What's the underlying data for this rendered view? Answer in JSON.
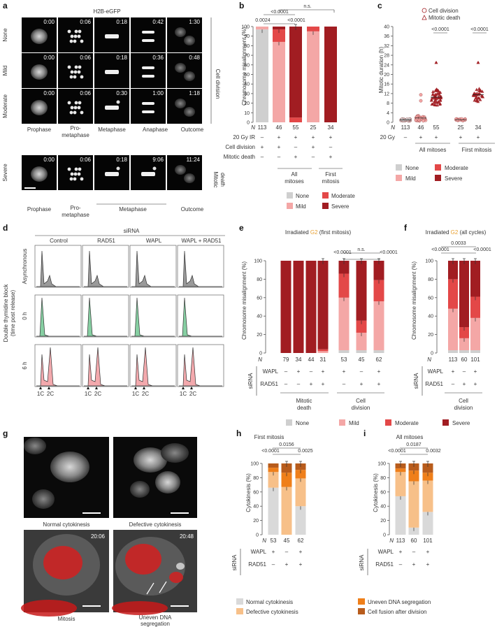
{
  "colors": {
    "none": "#cfcfcf",
    "mild": "#f4a7a6",
    "moderate": "#e34848",
    "severe": "#a11d22",
    "normal_cyto": "#d9d9d9",
    "defective_cyto": "#f7c089",
    "uneven_dna": "#ef7f1a",
    "fusion": "#b85c1c",
    "green": "#86cfa2",
    "pink": "#f3a9ad",
    "gray": "#9a9a9a",
    "g2": "#e8a030"
  },
  "panel_a": {
    "letter": "a",
    "title": "H2B-eGFP",
    "rows": [
      {
        "label": "None",
        "times": [
          "0:00",
          "0:06",
          "0:18",
          "0:42",
          "1:30"
        ]
      },
      {
        "label": "Mild",
        "times": [
          "0:00",
          "0:06",
          "0:18",
          "0:36",
          "0:48"
        ]
      },
      {
        "label": "Moderate",
        "times": [
          "0:00",
          "0:06",
          "0:30",
          "1:00",
          "1:18"
        ]
      },
      {
        "label": "Severe",
        "times": [
          "0:00",
          "0:06",
          "0:18",
          "9:06",
          "11:24"
        ]
      }
    ],
    "right_label_top": "Cell division",
    "right_label_bottom_1": "Mitotic",
    "right_label_bottom_2": "death",
    "cols_top": [
      "Prophase",
      "Pro-",
      "metaphase",
      "Metaphase",
      "Anaphase",
      "Outcome"
    ],
    "cols_bottom": [
      "Prophase",
      "Pro-",
      "metaphase",
      "Metaphase",
      "Outcome"
    ]
  },
  "panel_b": {
    "letter": "b",
    "ylabel": "Chromosome misalignment (%)",
    "yticks": [
      "0",
      "10",
      "20",
      "30",
      "40",
      "50",
      "60",
      "70",
      "80",
      "90",
      "100"
    ],
    "n_label": "N",
    "n": [
      "113",
      "46",
      "55",
      "25",
      "34"
    ],
    "rows": [
      {
        "label": "20 Gy IR",
        "vals": [
          "–",
          "+",
          "+",
          "+",
          "+"
        ]
      },
      {
        "label": "Cell division",
        "vals": [
          "+",
          "+",
          "–",
          "+",
          "–"
        ]
      },
      {
        "label": "Mitotic death",
        "vals": [
          "–",
          "–",
          "+",
          "–",
          "+"
        ]
      }
    ],
    "group1": "All",
    "group1b": "mitoses",
    "group2": "First",
    "group2b": "mitosis",
    "pvals": [
      "0.0024",
      "<0.0001",
      "<0.0001",
      "n.s."
    ],
    "legend": [
      "None",
      "Moderate",
      "Mild",
      "Severe"
    ]
  },
  "panel_c": {
    "letter": "c",
    "ylabel": "Mitotic duration (h)",
    "yticks": [
      "0",
      "4",
      "8",
      "12",
      "16",
      "20",
      "24",
      "28",
      "32",
      "36",
      "40"
    ],
    "legend1": "Cell division",
    "legend2": "Mitotic death",
    "n_label": "N",
    "n": [
      "113",
      "46",
      "55",
      "25",
      "34"
    ],
    "row_label": "20 Gy",
    "row_vals": [
      "–",
      "+",
      "+",
      "+",
      "+"
    ],
    "group1": "All mitoses",
    "group2": "First mitosis",
    "pvals": [
      "<0.0001",
      "<0.0001"
    ]
  },
  "panel_d": {
    "letter": "d",
    "header": "siRNA",
    "cols": [
      "Control",
      "RAD51",
      "WAPL",
      "WAPL + RAD51"
    ],
    "rows": [
      "Asynchronous",
      "0 h",
      "6 h"
    ],
    "side_label_1": "Double thymidine block",
    "side_label_2": "(time post release)",
    "ticks": [
      "1C",
      "2C"
    ]
  },
  "panel_e": {
    "letter": "e",
    "title_pre": "Irradiated ",
    "title_g2": "G2",
    "title_post": " (first mitosis)",
    "ylabel": "Chromosome misalignment (%)",
    "yticks": [
      "0",
      "20",
      "40",
      "60",
      "80",
      "100"
    ],
    "n_label": "N",
    "n": [
      "79",
      "34",
      "44",
      "31",
      "53",
      "45",
      "62"
    ],
    "sirna": "siRNA",
    "row1": {
      "label": "WAPL",
      "vals": [
        "–",
        "+",
        "–",
        "+",
        "+",
        "–",
        "+"
      ]
    },
    "row2": {
      "label": "RAD51",
      "vals": [
        "–",
        "–",
        "+",
        "+",
        "–",
        "+",
        "+"
      ]
    },
    "group1a": "Mitotic",
    "group1b": "death",
    "group2a": "Cell",
    "group2b": "division",
    "pvals": [
      "<0.0001",
      "<0.0001",
      "n.s."
    ],
    "legend": [
      "None",
      "Mild",
      "Moderate",
      "Severe"
    ]
  },
  "panel_f": {
    "letter": "f",
    "title_pre": "Irradiated ",
    "title_g2": "G2",
    "title_post": " (all cycles)",
    "ylabel": "Chromosome misalignment (%)",
    "yticks": [
      "0",
      "20",
      "40",
      "60",
      "80",
      "100"
    ],
    "n_label": "N",
    "n": [
      "113",
      "60",
      "101"
    ],
    "sirna": "siRNA",
    "row1": {
      "label": "WAPL",
      "vals": [
        "+",
        "–",
        "+"
      ]
    },
    "row2": {
      "label": "RAD51",
      "vals": [
        "–",
        "+",
        "+"
      ]
    },
    "group_a": "Cell",
    "group_b": "division",
    "pvals": [
      "0.0033",
      "<0.0001",
      "<0.0001"
    ]
  },
  "panel_g": {
    "letter": "g",
    "cap1": "Normal cytokinesis",
    "cap2": "Defective cytokinesis",
    "cap3": "Mitosis",
    "cap4a": "Uneven DNA",
    "cap4b": "segregation",
    "time1": "20:06",
    "time2": "20:48"
  },
  "panel_h": {
    "letter": "h",
    "title": "First mitosis",
    "ylabel": "Cytokinesis (%)",
    "yticks": [
      "0",
      "20",
      "40",
      "60",
      "80",
      "100"
    ],
    "n_label": "N",
    "n": [
      "53",
      "45",
      "62"
    ],
    "sirna": "siRNA",
    "row1": {
      "label": "WAPL",
      "vals": [
        "+",
        "–",
        "+"
      ]
    },
    "row2": {
      "label": "RAD51",
      "vals": [
        "–",
        "+",
        "+"
      ]
    },
    "pvals": [
      "0.0156",
      "<0.0001",
      "0.0025"
    ]
  },
  "panel_i": {
    "letter": "i",
    "title": "All mitoses",
    "ylabel": "Cytokinesis (%)",
    "yticks": [
      "0",
      "20",
      "40",
      "60",
      "80",
      "100"
    ],
    "n_label": "N",
    "n": [
      "113",
      "60",
      "101"
    ],
    "sirna": "siRNA",
    "row1": {
      "label": "WAPL",
      "vals": [
        "+",
        "–",
        "+"
      ]
    },
    "row2": {
      "label": "RAD51",
      "vals": [
        "–",
        "+",
        "+"
      ]
    },
    "pvals": [
      "0.0187",
      "<0.0001",
      "0.0032"
    ]
  },
  "cyto_legend": [
    "Normal cytokinesis",
    "Uneven DNA segregation",
    "Defective cytokinesis",
    "Cell fusion after division"
  ],
  "chart_data": [
    {
      "panel": "b",
      "type": "bar",
      "stacked": true,
      "ylabel": "Chromosome misalignment (%)",
      "ylim": [
        0,
        100
      ],
      "categories": [
        "113",
        "46",
        "55",
        "25",
        "34"
      ],
      "series": [
        {
          "name": "None",
          "values": [
            97,
            0,
            0,
            0,
            0
          ]
        },
        {
          "name": "Mild",
          "values": [
            3,
            84,
            0,
            95,
            0
          ]
        },
        {
          "name": "Moderate",
          "values": [
            0,
            13,
            5,
            5,
            0
          ]
        },
        {
          "name": "Severe",
          "values": [
            0,
            3,
            95,
            0,
            100
          ]
        }
      ]
    },
    {
      "panel": "c",
      "type": "scatter",
      "ylabel": "Mitotic duration (h)",
      "ylim": [
        0,
        40
      ],
      "categories": [
        "113",
        "46",
        "55",
        "25",
        "34"
      ],
      "series": [
        {
          "name": "Cell division",
          "medians": [
            1.0,
            1.6,
            null,
            1.0,
            null
          ]
        },
        {
          "name": "Mitotic death",
          "medians": [
            null,
            null,
            10.5,
            null,
            11.5
          ]
        }
      ]
    },
    {
      "panel": "e",
      "type": "bar",
      "stacked": true,
      "ylabel": "Chromosome misalignment (%)",
      "ylim": [
        0,
        100
      ],
      "categories": [
        "79",
        "34",
        "44",
        "31",
        "53",
        "45",
        "62"
      ],
      "series": [
        {
          "name": "None",
          "values": [
            0,
            0,
            0,
            0,
            3,
            3,
            3
          ]
        },
        {
          "name": "Mild",
          "values": [
            0,
            0,
            0,
            2,
            57,
            19,
            53
          ]
        },
        {
          "name": "Moderate",
          "values": [
            0,
            0,
            0,
            2,
            26,
            13,
            23
          ]
        },
        {
          "name": "Severe",
          "values": [
            100,
            100,
            100,
            96,
            14,
            65,
            21
          ]
        }
      ]
    },
    {
      "panel": "f",
      "type": "bar",
      "stacked": true,
      "ylabel": "Chromosome misalignment (%)",
      "ylim": [
        0,
        100
      ],
      "categories": [
        "113",
        "60",
        "101"
      ],
      "series": [
        {
          "name": "None",
          "values": [
            3,
            3,
            3
          ]
        },
        {
          "name": "Mild",
          "values": [
            45,
            13,
            35
          ]
        },
        {
          "name": "Moderate",
          "values": [
            32,
            12,
            23
          ]
        },
        {
          "name": "Severe",
          "values": [
            20,
            72,
            39
          ]
        }
      ]
    },
    {
      "panel": "h",
      "type": "bar",
      "stacked": true,
      "ylabel": "Cytokinesis (%)",
      "ylim": [
        0,
        100
      ],
      "categories": [
        "53",
        "45",
        "62"
      ],
      "series": [
        {
          "name": "Normal cytokinesis",
          "values": [
            66,
            0,
            40
          ]
        },
        {
          "name": "Defective cytokinesis",
          "values": [
            22,
            67,
            39
          ]
        },
        {
          "name": "Uneven DNA segregation",
          "values": [
            6,
            20,
            12
          ]
        },
        {
          "name": "Cell fusion after division",
          "values": [
            6,
            13,
            9
          ]
        }
      ]
    },
    {
      "panel": "i",
      "type": "bar",
      "stacked": true,
      "ylabel": "Cytokinesis (%)",
      "ylim": [
        0,
        100
      ],
      "categories": [
        "113",
        "60",
        "101"
      ],
      "series": [
        {
          "name": "Normal cytokinesis",
          "values": [
            54,
            10,
            32
          ]
        },
        {
          "name": "Defective cytokinesis",
          "values": [
            34,
            65,
            44
          ]
        },
        {
          "name": "Uneven DNA segregation",
          "values": [
            5,
            15,
            11
          ]
        },
        {
          "name": "Cell fusion after division",
          "values": [
            7,
            10,
            13
          ]
        }
      ]
    }
  ]
}
